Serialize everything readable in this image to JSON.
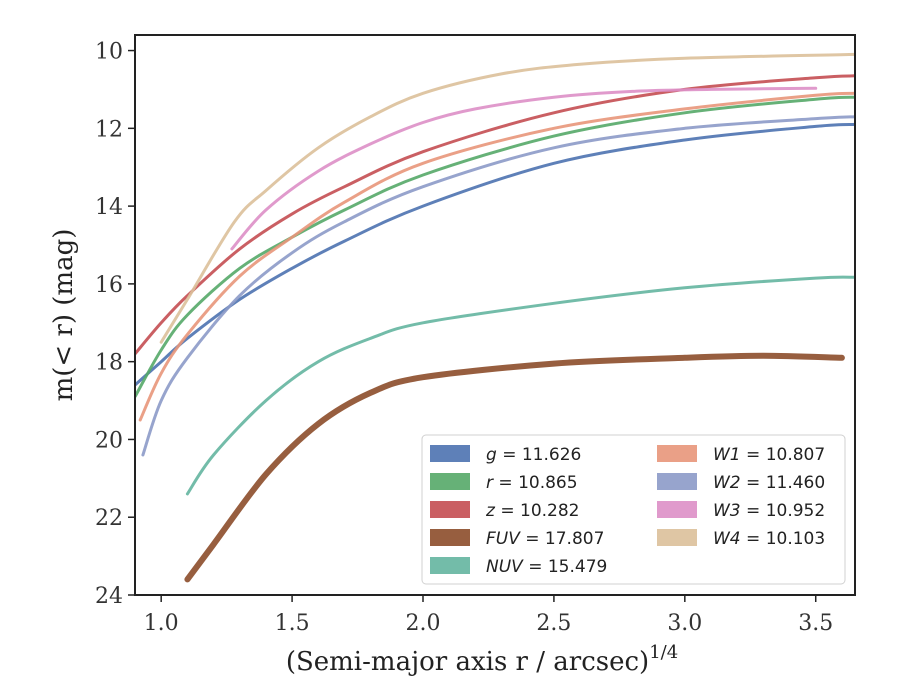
{
  "chart_data": {
    "type": "line",
    "xlabel": "(Semi-major axis r / arcsec)",
    "xlabel_exp": "1/4",
    "ylabel": "m(< r) (mag)",
    "xlim": [
      0.9,
      3.65
    ],
    "ylim": [
      24,
      9.6
    ],
    "y_inverted": true,
    "xticks": [
      1.0,
      1.5,
      2.0,
      2.5,
      3.0,
      3.5
    ],
    "xtick_labels": [
      "1.0",
      "1.5",
      "2.0",
      "2.5",
      "3.0",
      "3.5"
    ],
    "yticks": [
      10,
      12,
      14,
      16,
      18,
      20,
      22,
      24
    ],
    "ytick_labels": [
      "10",
      "12",
      "14",
      "16",
      "18",
      "20",
      "22",
      "24"
    ],
    "grid": false,
    "legend_position": "lower-right",
    "legend_columns": 2,
    "series": [
      {
        "name": "g",
        "value": "11.626",
        "color": "#4c72b0",
        "width": 3,
        "x": [
          0.9,
          1.0,
          1.1,
          1.3,
          1.5,
          1.7,
          2.0,
          2.5,
          3.0,
          3.5,
          3.65
        ],
        "y": [
          18.6,
          18.0,
          17.4,
          16.4,
          15.6,
          14.9,
          14.0,
          12.9,
          12.3,
          11.95,
          11.9
        ]
      },
      {
        "name": "r",
        "value": "10.865",
        "color": "#55a868",
        "width": 3,
        "x": [
          0.9,
          1.0,
          1.1,
          1.3,
          1.5,
          1.7,
          2.0,
          2.5,
          3.0,
          3.5,
          3.65
        ],
        "y": [
          18.9,
          17.7,
          16.8,
          15.6,
          14.8,
          14.1,
          13.2,
          12.2,
          11.6,
          11.25,
          11.2
        ]
      },
      {
        "name": "z",
        "value": "10.282",
        "color": "#c44e52",
        "width": 3,
        "x": [
          0.9,
          1.0,
          1.1,
          1.3,
          1.5,
          1.7,
          2.0,
          2.5,
          3.0,
          3.5,
          3.65
        ],
        "y": [
          17.8,
          17.0,
          16.3,
          15.1,
          14.2,
          13.5,
          12.6,
          11.6,
          11.0,
          10.7,
          10.65
        ]
      },
      {
        "name": "FUV",
        "value": "17.807",
        "color": "#8c4d2a",
        "width": 6,
        "x": [
          1.1,
          1.2,
          1.4,
          1.6,
          1.8,
          2.0,
          2.5,
          3.0,
          3.3,
          3.6
        ],
        "y": [
          23.6,
          22.7,
          20.9,
          19.6,
          18.8,
          18.4,
          18.05,
          17.9,
          17.85,
          17.9
        ]
      },
      {
        "name": "NUV",
        "value": "15.479",
        "color": "#64b5a0",
        "width": 3,
        "x": [
          1.1,
          1.2,
          1.4,
          1.6,
          1.8,
          2.0,
          2.5,
          3.0,
          3.5,
          3.65
        ],
        "y": [
          21.4,
          20.4,
          19.0,
          18.0,
          17.4,
          17.0,
          16.5,
          16.1,
          15.85,
          15.83
        ]
      },
      {
        "name": "W1",
        "value": "10.807",
        "color": "#e8967a",
        "width": 3,
        "x": [
          0.92,
          1.0,
          1.1,
          1.3,
          1.5,
          1.7,
          2.0,
          2.5,
          3.0,
          3.5,
          3.65
        ],
        "y": [
          19.5,
          18.3,
          17.3,
          15.8,
          14.8,
          13.9,
          12.9,
          12.0,
          11.5,
          11.15,
          11.1
        ]
      },
      {
        "name": "W2",
        "value": "11.460",
        "color": "#8c9ac8",
        "width": 3,
        "x": [
          0.93,
          1.0,
          1.1,
          1.3,
          1.5,
          1.7,
          2.0,
          2.5,
          3.0,
          3.5,
          3.65
        ],
        "y": [
          20.4,
          19.0,
          17.9,
          16.3,
          15.2,
          14.4,
          13.5,
          12.5,
          12.0,
          11.75,
          11.7
        ]
      },
      {
        "name": "W3",
        "value": "10.952",
        "color": "#dd8fc6",
        "width": 3,
        "x": [
          1.27,
          1.4,
          1.6,
          1.8,
          2.0,
          2.2,
          2.5,
          2.8,
          3.1,
          3.5
        ],
        "y": [
          15.1,
          14.1,
          13.1,
          12.4,
          11.85,
          11.5,
          11.2,
          11.05,
          11.0,
          10.97
        ]
      },
      {
        "name": "W4",
        "value": "10.103",
        "color": "#dcc09a",
        "width": 3,
        "x": [
          1.0,
          1.1,
          1.28,
          1.4,
          1.6,
          1.8,
          2.0,
          2.3,
          2.6,
          3.0,
          3.65
        ],
        "y": [
          17.5,
          16.4,
          14.4,
          13.6,
          12.5,
          11.7,
          11.1,
          10.6,
          10.35,
          10.2,
          10.1
        ]
      }
    ]
  }
}
